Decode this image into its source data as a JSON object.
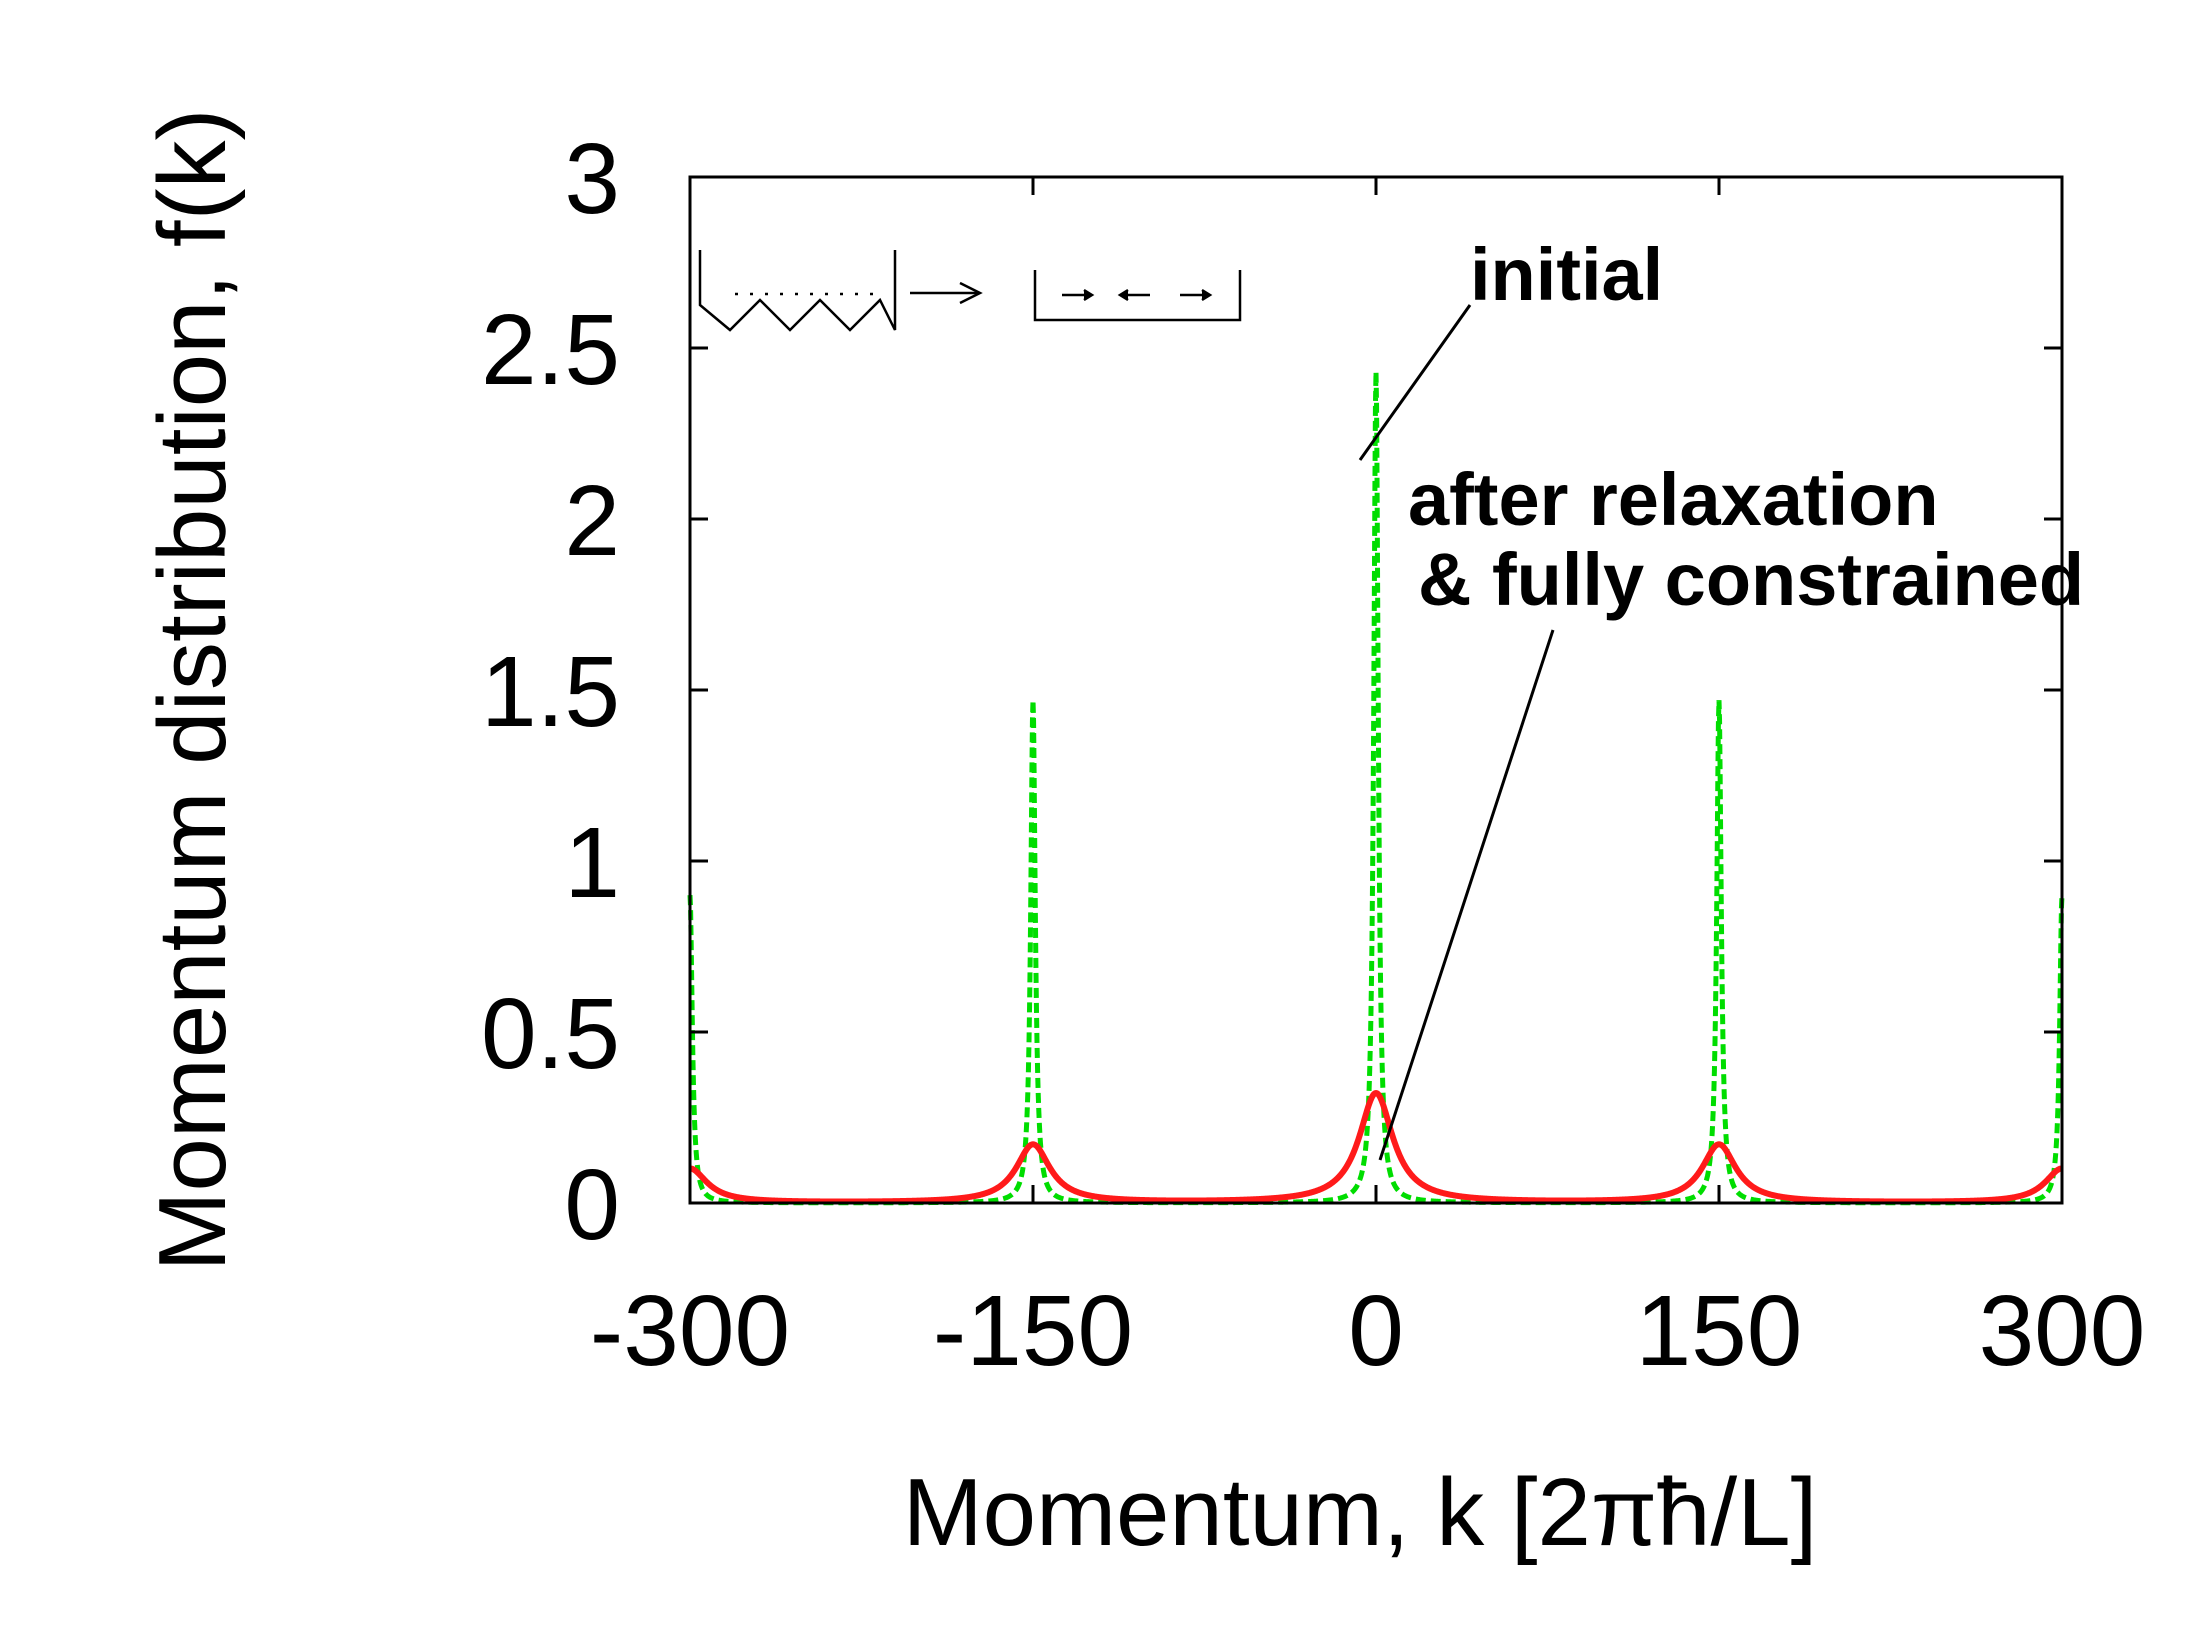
{
  "chart_data": {
    "type": "line",
    "xlabel": "Momentum, k  [2πħ/L]",
    "ylabel": "Momentum distribution, f(k)",
    "xlim": [
      -300,
      300
    ],
    "ylim": [
      0,
      3
    ],
    "x_ticks": [
      "-300",
      "-150",
      "0",
      "150",
      "300"
    ],
    "y_ticks": [
      "0",
      "0.5",
      "1",
      "1.5",
      "2",
      "2.5",
      "3"
    ],
    "grid": false,
    "series": [
      {
        "name": "initial",
        "style": "dashed",
        "color": "#00dd00",
        "peaks": [
          {
            "x": -300,
            "height": 0.9
          },
          {
            "x": -150,
            "height": 1.47
          },
          {
            "x": 0,
            "height": 2.43
          },
          {
            "x": 150,
            "height": 1.47
          },
          {
            "x": 300,
            "height": 0.9
          }
        ],
        "baseline": 0.0
      },
      {
        "name": "after relaxation & fully constrained",
        "style": "solid",
        "color": "#ff1a1a",
        "peaks": [
          {
            "x": -300,
            "height": 0.1
          },
          {
            "x": -150,
            "height": 0.17
          },
          {
            "x": 0,
            "height": 0.32
          },
          {
            "x": 150,
            "height": 0.17
          },
          {
            "x": 300,
            "height": 0.1
          }
        ],
        "baseline": 0.0
      }
    ],
    "annotations": [
      {
        "text": "initial",
        "target": {
          "x": -3,
          "y": 2.15
        }
      },
      {
        "text": "after relaxation",
        "target": {
          "x": 1,
          "y": 0.13
        }
      },
      {
        "text": "& fully constrained",
        "target": {
          "x": 1,
          "y": 0.13
        }
      }
    ]
  }
}
